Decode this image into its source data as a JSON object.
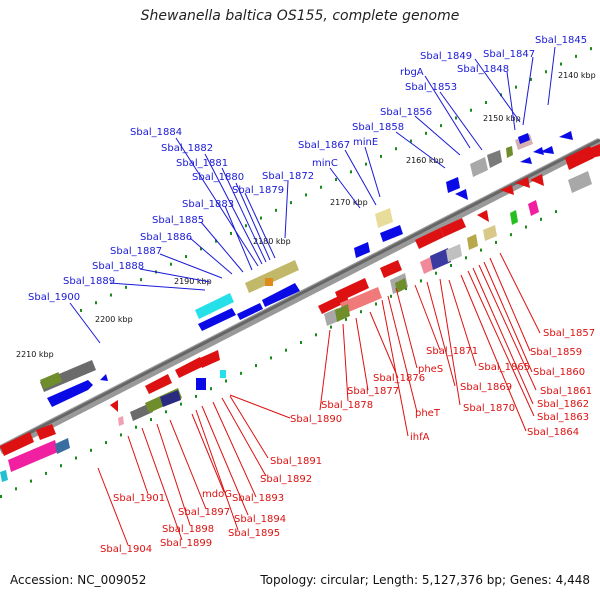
{
  "title": "Shewanella baltica OS155, complete genome",
  "footer": {
    "accession": "Accession: NC_009052",
    "topology": "Topology: circular; Length: 5,127,376 bp; Genes: 4,448"
  },
  "colors": {
    "backbone": "#777777",
    "forward_label": "#1a1ad6",
    "reverse_label": "#dd1111",
    "tick": "#1a8a1a"
  },
  "kbp_labels": [
    "2140 kbp",
    "2150 kbp",
    "2160 kbp",
    "2170 kbp",
    "2180 kbp",
    "2190 kbp",
    "2200 kbp",
    "2210 kbp"
  ],
  "labels_top": [
    "Sbal_1845",
    "Sbal_1847",
    "Sbal_1848",
    "Sbal_1849",
    "rbgA",
    "Sbal_1853",
    "Sbal_1856",
    "Sbal_1858",
    "minE",
    "Sbal_1867",
    "minC",
    "Sbal_1872",
    "Sbal_1879",
    "Sbal_1880",
    "Sbal_1881",
    "Sbal_1882",
    "Sbal_1884",
    "Sbal_1883",
    "Sbal_1885",
    "Sbal_1886",
    "Sbal_1887",
    "Sbal_1888",
    "Sbal_1889",
    "Sbal_1900"
  ],
  "labels_bottom": [
    "Sbal_1857",
    "Sbal_1859",
    "Sbal_1860",
    "Sbal_1861",
    "Sbal_1862",
    "Sbal_1863",
    "Sbal_1864",
    "Sbal_1865",
    "Sbal_1871",
    "Sbal_1869",
    "Sbal_1870",
    "pheS",
    "pheT",
    "ihfA",
    "Sbal_1876",
    "Sbal_1877",
    "Sbal_1878",
    "Sbal_1890",
    "Sbal_1891",
    "Sbal_1892",
    "Sbal_1893",
    "Sbal_1894",
    "Sbal_1895",
    "mdoG",
    "Sbal_1897",
    "Sbal_1898",
    "Sbal_1899",
    "Sbal_1901",
    "Sbal_1904"
  ]
}
